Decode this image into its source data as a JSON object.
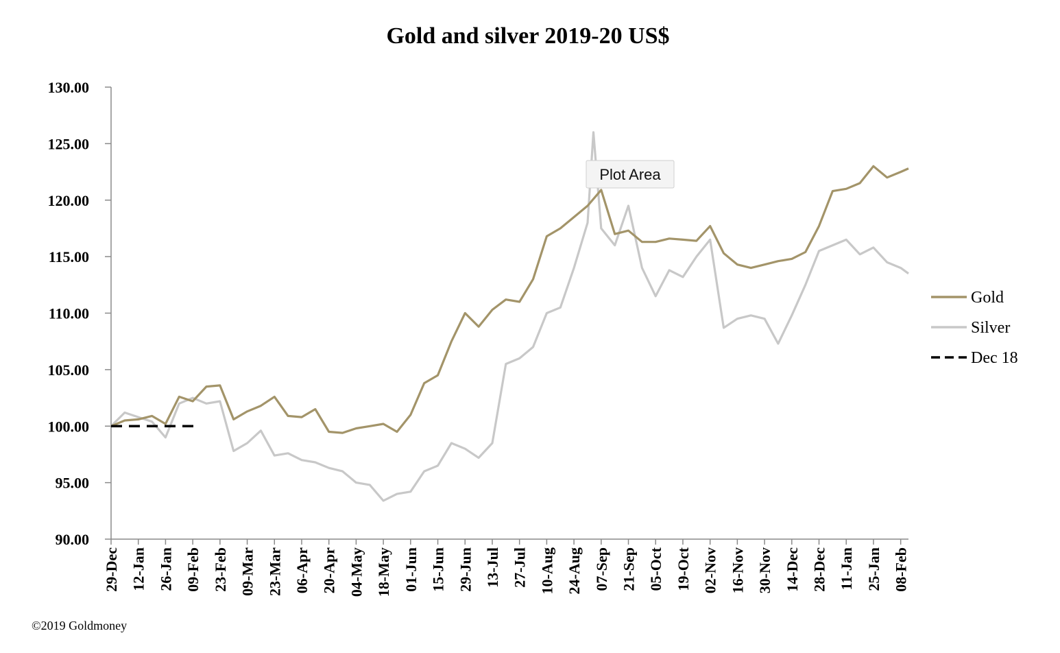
{
  "chart_data": {
    "type": "line",
    "title": "Gold and silver 2019-20  US$",
    "xlabel": "",
    "ylabel": "",
    "ylim": [
      90,
      130
    ],
    "y_ticks": [
      "90.00",
      "95.00",
      "100.00",
      "105.00",
      "110.00",
      "115.00",
      "120.00",
      "125.00",
      "130.00"
    ],
    "x_ticks": [
      "29-Dec",
      "12-Jan",
      "26-Jan",
      "09-Feb",
      "23-Feb",
      "09-Mar",
      "23-Mar",
      "06-Apr",
      "20-Apr",
      "04-May",
      "18-May",
      "01-Jun",
      "15-Jun",
      "29-Jun",
      "13-Jul",
      "27-Jul",
      "10-Aug",
      "24-Aug",
      "07-Sep",
      "21-Sep",
      "05-Oct",
      "19-Oct",
      "02-Nov",
      "16-Nov",
      "30-Nov",
      "14-Dec",
      "28-Dec",
      "11-Jan",
      "25-Jan",
      "08-Feb"
    ],
    "grid": false,
    "legend_position": "right",
    "series": [
      {
        "name": "Gold",
        "color": "#a39469",
        "style": "solid",
        "x": [
          "29-Dec",
          "05-Jan",
          "12-Jan",
          "19-Jan",
          "26-Jan",
          "02-Feb",
          "09-Feb",
          "16-Feb",
          "23-Feb",
          "02-Mar",
          "09-Mar",
          "16-Mar",
          "23-Mar",
          "30-Mar",
          "06-Apr",
          "13-Apr",
          "20-Apr",
          "27-Apr",
          "04-May",
          "11-May",
          "18-May",
          "25-May",
          "01-Jun",
          "08-Jun",
          "15-Jun",
          "22-Jun",
          "29-Jun",
          "06-Jul",
          "13-Jul",
          "20-Jul",
          "27-Jul",
          "03-Aug",
          "10-Aug",
          "17-Aug",
          "24-Aug",
          "31-Aug",
          "07-Sep",
          "14-Sep",
          "21-Sep",
          "28-Sep",
          "05-Oct",
          "12-Oct",
          "19-Oct",
          "26-Oct",
          "02-Nov",
          "09-Nov",
          "16-Nov",
          "23-Nov",
          "30-Nov",
          "07-Dec",
          "14-Dec",
          "21-Dec",
          "28-Dec",
          "04-Jan",
          "11-Jan",
          "18-Jan",
          "25-Jan",
          "01-Feb",
          "08-Feb",
          "12-Feb"
        ],
        "values": [
          100.0,
          100.5,
          100.6,
          100.9,
          100.2,
          102.6,
          102.2,
          103.5,
          103.6,
          100.6,
          101.3,
          101.8,
          102.6,
          100.9,
          100.8,
          101.5,
          99.5,
          99.4,
          99.8,
          100.0,
          100.2,
          99.5,
          101.0,
          103.8,
          104.5,
          107.5,
          110.0,
          108.8,
          110.3,
          111.2,
          111.0,
          113.0,
          116.8,
          117.5,
          118.5,
          119.5,
          120.9,
          117.0,
          117.3,
          116.3,
          116.3,
          116.6,
          116.5,
          116.4,
          117.7,
          115.3,
          114.3,
          114.0,
          114.3,
          114.6,
          114.8,
          115.4,
          117.7,
          120.8,
          121.0,
          121.5,
          123.0,
          122.0,
          122.5,
          122.8
        ]
      },
      {
        "name": "Silver",
        "color": "#c8c8c8",
        "style": "solid",
        "x": [
          "29-Dec",
          "05-Jan",
          "12-Jan",
          "19-Jan",
          "26-Jan",
          "02-Feb",
          "09-Feb",
          "16-Feb",
          "23-Feb",
          "02-Mar",
          "09-Mar",
          "16-Mar",
          "23-Mar",
          "30-Mar",
          "06-Apr",
          "13-Apr",
          "20-Apr",
          "27-Apr",
          "04-May",
          "11-May",
          "18-May",
          "25-May",
          "01-Jun",
          "08-Jun",
          "15-Jun",
          "22-Jun",
          "29-Jun",
          "06-Jul",
          "13-Jul",
          "20-Jul",
          "27-Jul",
          "03-Aug",
          "10-Aug",
          "17-Aug",
          "24-Aug",
          "31-Aug",
          "03-Sep",
          "07-Sep",
          "14-Sep",
          "21-Sep",
          "28-Sep",
          "05-Oct",
          "12-Oct",
          "19-Oct",
          "26-Oct",
          "02-Nov",
          "09-Nov",
          "16-Nov",
          "23-Nov",
          "30-Nov",
          "07-Dec",
          "14-Dec",
          "21-Dec",
          "28-Dec",
          "04-Jan",
          "11-Jan",
          "18-Jan",
          "25-Jan",
          "01-Feb",
          "08-Feb",
          "12-Feb"
        ],
        "values": [
          100.0,
          101.2,
          100.8,
          100.4,
          99.0,
          102.0,
          102.5,
          102.0,
          102.2,
          97.8,
          98.5,
          99.6,
          97.4,
          97.6,
          97.0,
          96.8,
          96.3,
          96.0,
          95.0,
          94.8,
          93.4,
          94.0,
          94.2,
          96.0,
          96.5,
          98.5,
          98.0,
          97.2,
          98.5,
          105.5,
          106.0,
          107.0,
          110.0,
          110.5,
          114.0,
          118.0,
          126.0,
          117.5,
          116.0,
          119.5,
          114.0,
          111.5,
          113.8,
          113.2,
          115.0,
          116.5,
          108.7,
          109.5,
          109.8,
          109.5,
          107.3,
          109.8,
          112.5,
          115.5,
          116.0,
          116.5,
          115.2,
          115.8,
          114.5,
          114.0,
          113.5
        ]
      },
      {
        "name": "Dec 18",
        "color": "#000000",
        "style": "dashed",
        "x": [
          "29-Dec",
          "12-Feb"
        ],
        "values": [
          100.0,
          100.0
        ]
      }
    ],
    "legend": [
      {
        "label": "Gold",
        "color": "#a39469",
        "style": "solid"
      },
      {
        "label": "Silver",
        "color": "#c8c8c8",
        "style": "solid"
      },
      {
        "label": "Dec 18",
        "color": "#000000",
        "style": "dashed"
      }
    ]
  },
  "tooltip": {
    "label": "Plot Area"
  },
  "footer": {
    "copyright": "©2019 Goldmoney"
  }
}
